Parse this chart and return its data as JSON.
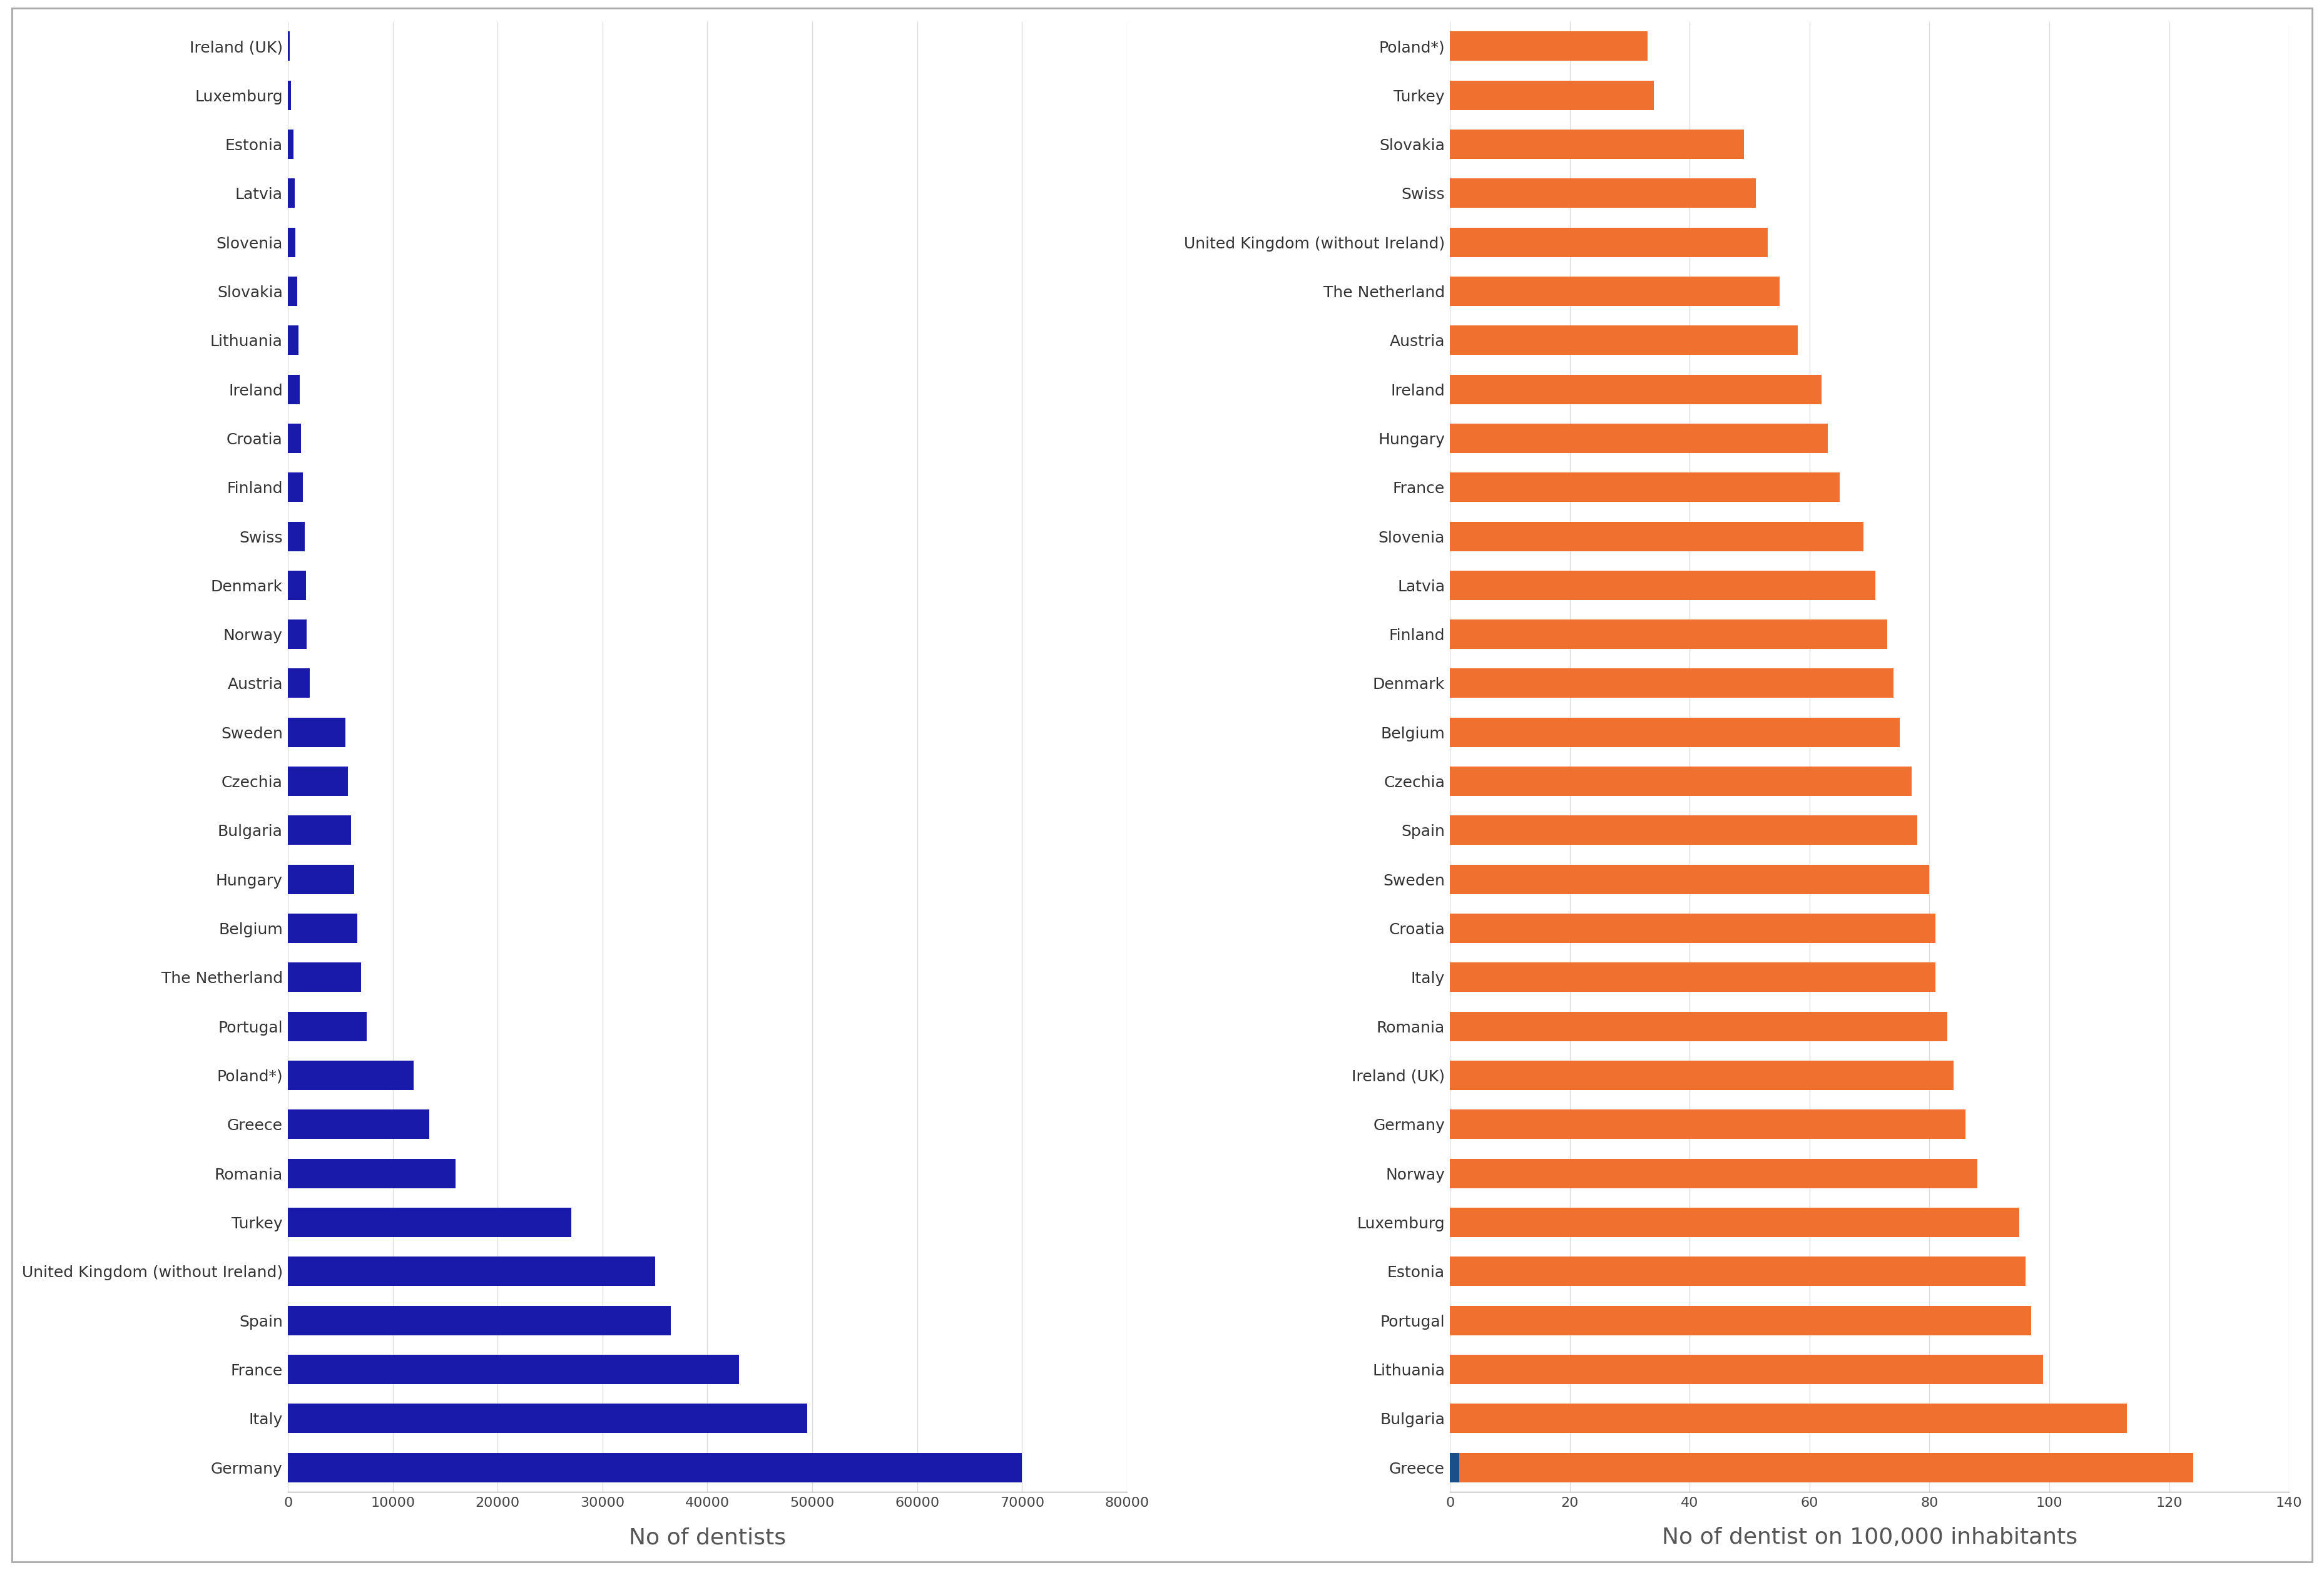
{
  "left_categories": [
    "Ireland (UK)",
    "Luxemburg",
    "Estonia",
    "Latvia",
    "Slovenia",
    "Slovakia",
    "Lithuania",
    "Ireland",
    "Croatia",
    "Finland",
    "Swiss",
    "Denmark",
    "Norway",
    "Austria",
    "Sweden",
    "Czechia",
    "Bulgaria",
    "Hungary",
    "Belgium",
    "The Netherland",
    "Portugal",
    "Poland*)",
    "Greece",
    "Romania",
    "Turkey",
    "United Kingdom (without Ireland)",
    "Spain",
    "France",
    "Italy",
    "Germany"
  ],
  "left_values": [
    150,
    280,
    500,
    620,
    700,
    900,
    1000,
    1100,
    1250,
    1400,
    1600,
    1700,
    1800,
    2100,
    5500,
    5700,
    6000,
    6300,
    6600,
    7000,
    7500,
    12000,
    13500,
    16000,
    27000,
    35000,
    36500,
    43000,
    49500,
    70000
  ],
  "right_categories": [
    "Poland*)",
    "Turkey",
    "Slovakia",
    "Swiss",
    "United Kingdom (without Ireland)",
    "The Netherland",
    "Austria",
    "Ireland",
    "Hungary",
    "France",
    "Slovenia",
    "Latvia",
    "Finland",
    "Denmark",
    "Belgium",
    "Czechia",
    "Spain",
    "Sweden",
    "Croatia",
    "Italy",
    "Romania",
    "Ireland (UK)",
    "Germany",
    "Norway",
    "Luxemburg",
    "Estonia",
    "Portugal",
    "Lithuania",
    "Bulgaria",
    "Greece"
  ],
  "right_values": [
    33,
    34,
    49,
    51,
    53,
    55,
    58,
    62,
    63,
    65,
    69,
    71,
    73,
    74,
    75,
    77,
    78,
    80,
    81,
    81,
    83,
    84,
    86,
    88,
    95,
    96,
    97,
    99,
    113,
    124
  ],
  "greece_marker_value": 1.5,
  "left_color": "#1a1aaa",
  "right_color": "#f07030",
  "right_marker_color": "#1a4f8a",
  "left_xlabel": "No of dentists",
  "right_xlabel": "No of dentist on 100,000 inhabitants",
  "left_xlim": [
    0,
    80000
  ],
  "right_xlim": [
    0,
    140
  ],
  "left_xticks": [
    0,
    10000,
    20000,
    30000,
    40000,
    50000,
    60000,
    70000,
    80000
  ],
  "right_xticks": [
    0,
    20,
    40,
    60,
    80,
    100,
    120,
    140
  ],
  "background_color": "#ffffff",
  "border_color": "#aaaaaa",
  "grid_color": "#dddddd",
  "label_fontsize": 18,
  "title_fontsize": 26,
  "tick_fontsize": 16,
  "bar_height": 0.6
}
